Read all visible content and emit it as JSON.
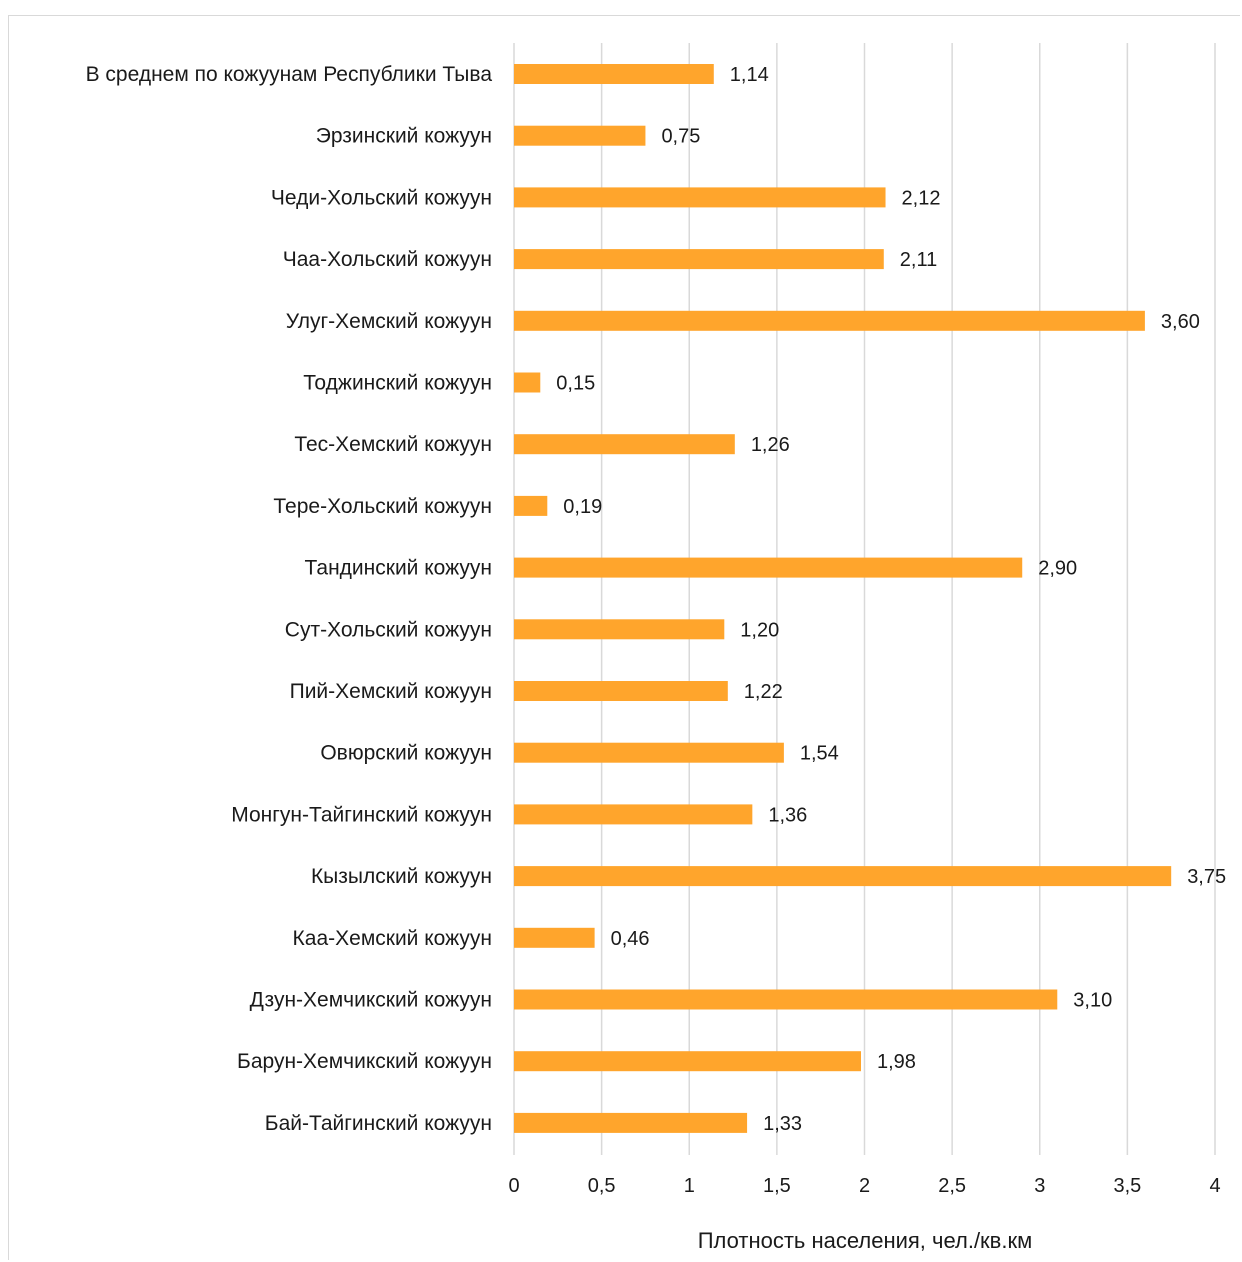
{
  "chart_data": {
    "type": "bar",
    "orientation": "horizontal",
    "categories": [
      "В среднем по кожуунам Республики Тыва",
      "Эрзинский кожуун",
      "Чеди-Хольский кожуун",
      "Чаа-Хольский кожуун",
      "Улуг-Хемский кожуун",
      "Тоджинский кожуун",
      "Тес-Хемский кожуун",
      "Тере-Хольский кожуун",
      "Тандинский кожуун",
      "Сут-Хольский кожуун",
      "Пий-Хемский кожуун",
      "Овюрский кожуун",
      "Монгун-Тайгинский кожуун",
      "Кызылский кожуун",
      "Каа-Хемский кожуун",
      "Дзун-Хемчикский кожуун",
      "Барун-Хемчикский кожуун",
      "Бай-Тайгинский кожуун"
    ],
    "values": [
      1.14,
      0.75,
      2.12,
      2.11,
      3.6,
      0.15,
      1.26,
      0.19,
      2.9,
      1.2,
      1.22,
      1.54,
      1.36,
      3.75,
      0.46,
      3.1,
      1.98,
      1.33
    ],
    "value_labels": [
      "1,14",
      "0,75",
      "2,12",
      "2,11",
      "3,60",
      "0,15",
      "1,26",
      "0,19",
      "2,90",
      "1,20",
      "1,22",
      "1,54",
      "1,36",
      "3,75",
      "0,46",
      "3,10",
      "1,98",
      "1,33"
    ],
    "xlabel": "Плотность населения, чел./кв.км",
    "ylabel": "",
    "xlim": [
      0,
      4
    ],
    "xticks": [
      0,
      0.5,
      1,
      1.5,
      2,
      2.5,
      3,
      3.5,
      4
    ],
    "xtick_labels": [
      "0",
      "0,5",
      "1",
      "1,5",
      "2",
      "2,5",
      "3",
      "3,5",
      "4"
    ],
    "grid": true,
    "bar_color": "#ffa52c",
    "gridline_color": "#d9d9d9"
  }
}
